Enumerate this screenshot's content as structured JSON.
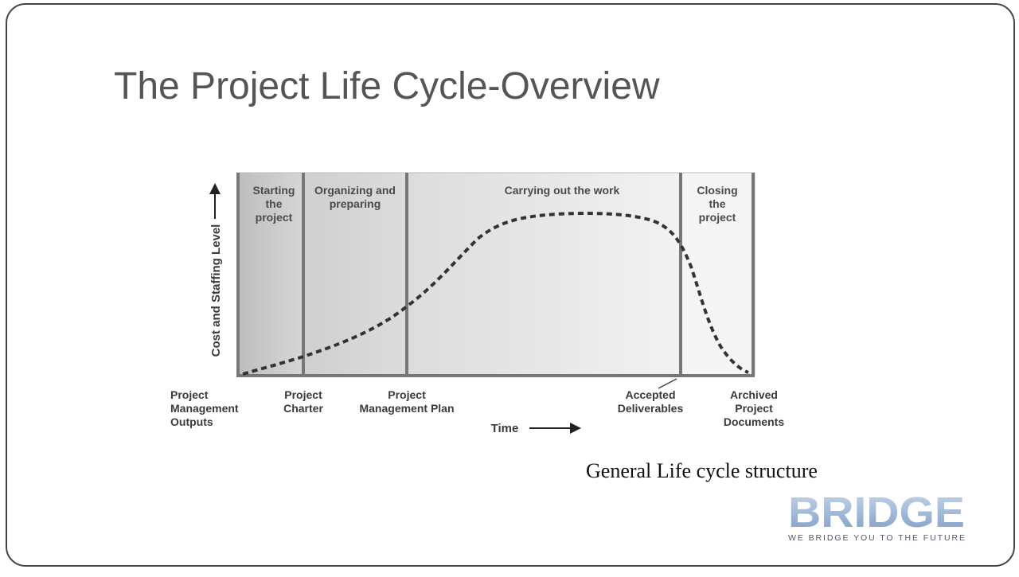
{
  "slide": {
    "title": "The Project Life Cycle-Overview",
    "diagram": {
      "y_axis_label": "Cost and Staffing Level",
      "x_axis_label": "Time",
      "phases": [
        {
          "lines": [
            "Starting",
            "the",
            "project"
          ]
        },
        {
          "lines": [
            "Organizing and",
            "preparing"
          ]
        },
        {
          "lines": [
            "Carrying out the work"
          ]
        },
        {
          "lines": [
            "Closing",
            "the",
            "project"
          ]
        }
      ],
      "outputs_heading": [
        "Project",
        "Management",
        "Outputs"
      ],
      "outputs": [
        {
          "lines": [
            "Project",
            "Charter"
          ]
        },
        {
          "lines": [
            "Project",
            "Management Plan"
          ]
        },
        {
          "lines": [
            "Accepted",
            "Deliverables"
          ]
        },
        {
          "lines": [
            "Archived",
            "Project",
            "Documents"
          ]
        }
      ]
    },
    "caption": "General Life cycle structure",
    "logo": {
      "name": "BRIDGE",
      "tagline": "WE BRIDGE YOU TO THE FUTURE"
    }
  }
}
